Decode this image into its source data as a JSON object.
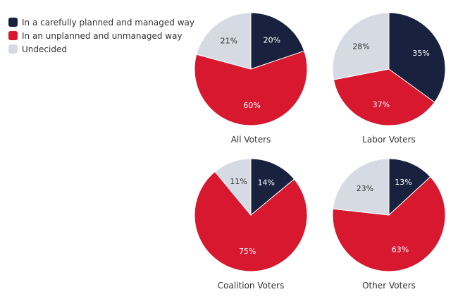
{
  "colors": {
    "planned": "#18223f",
    "unplanned": "#d7182f",
    "undecided": "#d6dae2"
  },
  "legend": [
    {
      "label": "In a carefully planned and managed way",
      "color": "#18223f"
    },
    {
      "label": "In an unplanned and unmanaged way",
      "color": "#d7182f"
    },
    {
      "label": "Undecided",
      "color": "#d6dae2"
    }
  ],
  "chart_data": [
    {
      "type": "pie",
      "title": "All Voters",
      "categories": [
        "In a carefully planned and managed way",
        "In an unplanned and unmanaged way",
        "Undecided"
      ],
      "values": [
        20,
        60,
        21
      ],
      "labels": [
        "20%",
        "60%",
        "21%"
      ]
    },
    {
      "type": "pie",
      "title": "Labor Voters",
      "categories": [
        "In a carefully planned and managed way",
        "In an unplanned and unmanaged way",
        "Undecided"
      ],
      "values": [
        35,
        37,
        28
      ],
      "labels": [
        "35%",
        "37%",
        "28%"
      ]
    },
    {
      "type": "pie",
      "title": "Coalition Voters",
      "categories": [
        "In a carefully planned and managed way",
        "In an unplanned and unmanaged way",
        "Undecided"
      ],
      "values": [
        14,
        75,
        11
      ],
      "labels": [
        "14%",
        "75%",
        "11%"
      ]
    },
    {
      "type": "pie",
      "title": "Other Voters",
      "categories": [
        "In a carefully planned and managed way",
        "In an unplanned and unmanaged way",
        "Undecided"
      ],
      "values": [
        13,
        63,
        23
      ],
      "labels": [
        "13%",
        "63%",
        "23%"
      ]
    }
  ]
}
